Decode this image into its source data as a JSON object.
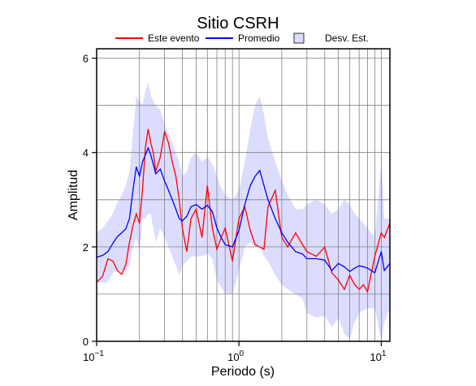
{
  "chart_data": {
    "type": "line",
    "title": "Sitio CSRH",
    "xlabel": "Periodo (s)",
    "ylabel": "Amplitud",
    "xscale": "log",
    "xlim": [
      0.1,
      11.5
    ],
    "ylim": [
      0,
      6.2
    ],
    "y_ticks": [
      0,
      2,
      4,
      6
    ],
    "y_tick_labels": [
      "0",
      "2",
      "4",
      "6"
    ],
    "x_ticks": [
      {
        "value": 0.1,
        "base": "10",
        "exp": "−1"
      },
      {
        "value": 1,
        "base": "10",
        "exp": "0"
      },
      {
        "value": 10,
        "base": "10",
        "exp": "1"
      }
    ],
    "grid": true,
    "legend_position": "top",
    "legend": [
      {
        "label": "Este evento",
        "color": "#ff0000",
        "kind": "line"
      },
      {
        "label": "Promedio",
        "color": "#0000ff",
        "kind": "line"
      },
      {
        "label": "Desv. Est.",
        "color": "#dcdcff",
        "kind": "box"
      }
    ],
    "series": [
      {
        "name": "Este evento",
        "color": "#ff0000",
        "x": [
          0.1,
          0.11,
          0.12,
          0.13,
          0.14,
          0.15,
          0.16,
          0.17,
          0.18,
          0.19,
          0.2,
          0.21,
          0.22,
          0.23,
          0.24,
          0.25,
          0.26,
          0.28,
          0.3,
          0.32,
          0.34,
          0.36,
          0.38,
          0.4,
          0.43,
          0.46,
          0.5,
          0.55,
          0.6,
          0.65,
          0.7,
          0.75,
          0.8,
          0.9,
          1.0,
          1.1,
          1.2,
          1.3,
          1.4,
          1.5,
          1.6,
          1.8,
          2.0,
          2.2,
          2.5,
          2.8,
          3.0,
          3.5,
          4.0,
          4.5,
          5.0,
          5.5,
          6.0,
          6.5,
          7.0,
          7.5,
          8.0,
          9.0,
          10.0,
          10.5,
          11.5
        ],
        "values": [
          1.25,
          1.38,
          1.75,
          1.7,
          1.5,
          1.42,
          1.62,
          2.1,
          2.45,
          2.7,
          2.5,
          3.2,
          4.1,
          4.5,
          4.2,
          4.0,
          3.6,
          3.9,
          4.45,
          4.2,
          3.8,
          3.5,
          3.0,
          2.4,
          1.9,
          2.6,
          2.8,
          2.2,
          3.3,
          2.4,
          1.95,
          2.2,
          2.4,
          1.7,
          2.6,
          2.85,
          2.35,
          2.05,
          2.0,
          1.95,
          2.85,
          3.2,
          2.2,
          2.0,
          2.3,
          2.05,
          1.9,
          1.8,
          2.0,
          1.45,
          1.3,
          1.1,
          1.4,
          1.2,
          1.1,
          1.2,
          1.05,
          1.8,
          2.3,
          2.2,
          2.5
        ]
      },
      {
        "name": "Promedio",
        "color": "#0000ff",
        "x": [
          0.1,
          0.11,
          0.12,
          0.13,
          0.14,
          0.15,
          0.16,
          0.17,
          0.18,
          0.19,
          0.2,
          0.21,
          0.22,
          0.23,
          0.24,
          0.25,
          0.26,
          0.28,
          0.3,
          0.32,
          0.34,
          0.36,
          0.38,
          0.4,
          0.43,
          0.46,
          0.5,
          0.55,
          0.6,
          0.65,
          0.7,
          0.75,
          0.8,
          0.9,
          1.0,
          1.1,
          1.2,
          1.3,
          1.4,
          1.5,
          1.6,
          1.8,
          2.0,
          2.2,
          2.5,
          2.8,
          3.0,
          3.5,
          4.0,
          4.5,
          5.0,
          5.5,
          6.0,
          6.5,
          7.0,
          7.5,
          8.0,
          9.0,
          10.0,
          10.5,
          11.5
        ],
        "values": [
          1.78,
          1.82,
          1.9,
          2.08,
          2.22,
          2.3,
          2.38,
          2.6,
          3.2,
          3.7,
          3.5,
          3.8,
          3.95,
          4.1,
          3.95,
          3.75,
          3.55,
          3.65,
          3.4,
          3.2,
          3.0,
          2.8,
          2.6,
          2.55,
          2.65,
          2.85,
          2.9,
          2.8,
          2.88,
          2.75,
          2.4,
          2.2,
          2.05,
          2.0,
          2.35,
          2.9,
          3.3,
          3.5,
          3.62,
          3.3,
          3.0,
          2.6,
          2.3,
          2.1,
          1.9,
          1.85,
          1.75,
          1.75,
          1.72,
          1.5,
          1.65,
          1.58,
          1.48,
          1.55,
          1.6,
          1.58,
          1.55,
          1.45,
          1.9,
          1.5,
          1.65
        ]
      }
    ],
    "std_band": {
      "name": "Desv. Est.",
      "color": "#dcdcff",
      "x": [
        0.1,
        0.11,
        0.12,
        0.13,
        0.14,
        0.15,
        0.16,
        0.17,
        0.18,
        0.19,
        0.2,
        0.21,
        0.22,
        0.23,
        0.24,
        0.25,
        0.26,
        0.28,
        0.3,
        0.32,
        0.34,
        0.36,
        0.38,
        0.4,
        0.43,
        0.46,
        0.5,
        0.55,
        0.6,
        0.65,
        0.7,
        0.75,
        0.8,
        0.9,
        1.0,
        1.1,
        1.2,
        1.3,
        1.4,
        1.5,
        1.6,
        1.8,
        2.0,
        2.2,
        2.5,
        2.8,
        3.0,
        3.5,
        4.0,
        4.5,
        5.0,
        5.5,
        6.0,
        6.5,
        7.0,
        7.5,
        8.0,
        9.0,
        10.0,
        10.5,
        11.5
      ],
      "upper": [
        2.3,
        2.4,
        2.55,
        2.7,
        2.95,
        3.1,
        3.3,
        3.6,
        4.4,
        5.2,
        5.1,
        5.0,
        5.3,
        5.5,
        5.2,
        5.1,
        5.0,
        4.9,
        4.6,
        4.4,
        4.2,
        4.0,
        3.8,
        3.5,
        3.6,
        3.9,
        4.0,
        3.8,
        3.9,
        3.75,
        3.5,
        3.25,
        3.1,
        3.0,
        3.2,
        3.8,
        4.5,
        5.0,
        5.2,
        4.8,
        4.3,
        3.8,
        3.4,
        3.1,
        2.8,
        2.8,
        2.9,
        3.0,
        2.9,
        2.7,
        2.8,
        3.0,
        2.9,
        2.7,
        2.6,
        2.5,
        2.4,
        2.2,
        3.8,
        2.6,
        2.6
      ]
    }
  }
}
